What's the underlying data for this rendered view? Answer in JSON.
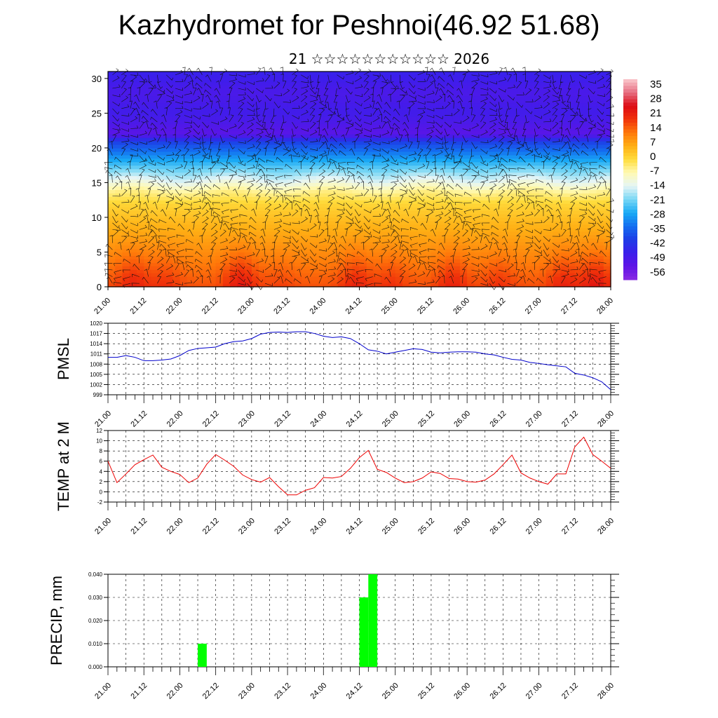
{
  "title": "Kazhydromet for Peshnoi(46.92 51.68)",
  "subtitle": "21 ☆☆☆☆☆☆☆☆☆☆☆ 2026",
  "chart_data": [
    {
      "type": "heatmap",
      "title": "",
      "xlabel": "",
      "ylabel": "",
      "x_tick_labels": [
        "21.00",
        "21.12",
        "22.00",
        "22.12",
        "23.00",
        "23.12",
        "24.00",
        "24.12",
        "25.00",
        "25.12",
        "26.00",
        "26.12",
        "27.00",
        "27.12",
        "28.00"
      ],
      "y_ticks": [
        0,
        5,
        10,
        15,
        20,
        25,
        30
      ],
      "ylim": [
        0,
        31
      ],
      "colorbar_labels": [
        "35",
        "28",
        "21",
        "14",
        "7",
        "0",
        "-7",
        "-14",
        "-21",
        "-28",
        "-35",
        "-42",
        "-49",
        "-56"
      ],
      "colorbar_range": [
        -63,
        42
      ],
      "temperature_profile": [
        {
          "height": 0,
          "value": 18
        },
        {
          "height": 3,
          "value": 14
        },
        {
          "height": 6,
          "value": 10
        },
        {
          "height": 9,
          "value": 6
        },
        {
          "height": 12,
          "value": 1
        },
        {
          "height": 14,
          "value": -6
        },
        {
          "height": 15,
          "value": -12
        },
        {
          "height": 17,
          "value": -22
        },
        {
          "height": 19,
          "value": -32
        },
        {
          "height": 21,
          "value": -42
        },
        {
          "height": 22,
          "value": -55
        },
        {
          "height": 25,
          "value": -50
        },
        {
          "height": 28,
          "value": -52
        },
        {
          "height": 31,
          "value": -48
        }
      ],
      "warm_cores": [
        {
          "x": 0.7,
          "value": 24
        },
        {
          "x": 1.6,
          "value": 22
        },
        {
          "x": 3.7,
          "value": 26
        },
        {
          "x": 4.8,
          "value": 20
        },
        {
          "x": 6.9,
          "value": 24
        },
        {
          "x": 7.9,
          "value": 22
        },
        {
          "x": 9.6,
          "value": 24
        },
        {
          "x": 10.9,
          "value": 22
        },
        {
          "x": 12.7,
          "value": 24
        },
        {
          "x": 13.6,
          "value": 26
        }
      ],
      "wind_barbs": true
    },
    {
      "type": "line",
      "title": "",
      "xlabel": "",
      "ylabel": "PMSL",
      "x_tick_labels": [
        "21.00",
        "21.12",
        "22.00",
        "22.12",
        "23.00",
        "23.12",
        "24.00",
        "24.12",
        "25.00",
        "25.12",
        "26.00",
        "26.12",
        "27.00",
        "27.12",
        "28.00"
      ],
      "y_ticks": [
        999,
        1002,
        1005,
        1008,
        1011,
        1014,
        1017,
        1020
      ],
      "ylim": [
        999,
        1020
      ],
      "series": [
        {
          "color": "#0000cc",
          "x": [
            0,
            0.25,
            0.5,
            0.75,
            1,
            1.25,
            1.5,
            1.75,
            2,
            2.25,
            2.5,
            2.75,
            3,
            3.25,
            3.5,
            3.75,
            4,
            4.25,
            4.5,
            4.75,
            5,
            5.25,
            5.5,
            5.75,
            6,
            6.25,
            6.5,
            6.75,
            7,
            7.25,
            7.5,
            7.75,
            8,
            8.25,
            8.5,
            8.75,
            9,
            9.25,
            9.5,
            9.75,
            10,
            10.25,
            10.5,
            10.75,
            11,
            11.25,
            11.5,
            11.75,
            12,
            12.25,
            12.5,
            12.75,
            13,
            13.25,
            13.5,
            13.75,
            14
          ],
          "values": [
            1010,
            1010,
            1010.5,
            1010,
            1009,
            1009,
            1009.2,
            1009.5,
            1010.5,
            1012,
            1012.6,
            1012.8,
            1013,
            1014,
            1014.6,
            1014.8,
            1015.5,
            1016.8,
            1017.3,
            1017.4,
            1017.3,
            1017.5,
            1017.5,
            1017,
            1016.2,
            1015.8,
            1016,
            1015.5,
            1014,
            1012.2,
            1011.8,
            1011,
            1011.5,
            1012,
            1012.5,
            1012.3,
            1011.5,
            1011.3,
            1011.5,
            1011.6,
            1011.6,
            1011.5,
            1011,
            1010.7,
            1010,
            1009.4,
            1009.2,
            1008.5,
            1008.2,
            1007.8,
            1007.5,
            1007.2,
            1005.3,
            1004.8,
            1004,
            1002.8,
            1000.5
          ]
        }
      ]
    },
    {
      "type": "line",
      "title": "",
      "xlabel": "",
      "ylabel": "TEMP at 2 M",
      "x_tick_labels": [
        "21.00",
        "21.12",
        "22.00",
        "22.12",
        "23.00",
        "23.12",
        "24.00",
        "24.12",
        "25.00",
        "25.12",
        "26.00",
        "26.12",
        "27.00",
        "27.12",
        "28.00"
      ],
      "y_ticks": [
        -2,
        0,
        2,
        4,
        6,
        8,
        10,
        12
      ],
      "ylim": [
        -2,
        12
      ],
      "series": [
        {
          "color": "#ee0000",
          "x": [
            0,
            0.25,
            0.5,
            0.75,
            1,
            1.25,
            1.5,
            1.75,
            2,
            2.25,
            2.5,
            2.75,
            3,
            3.25,
            3.5,
            3.75,
            4,
            4.25,
            4.5,
            4.75,
            5,
            5.25,
            5.5,
            5.75,
            6,
            6.25,
            6.5,
            6.75,
            7,
            7.25,
            7.5,
            7.75,
            8,
            8.25,
            8.5,
            8.75,
            9,
            9.25,
            9.5,
            9.75,
            10,
            10.25,
            10.5,
            10.75,
            11,
            11.25,
            11.5,
            11.75,
            12,
            12.25,
            12.5,
            12.75,
            13,
            13.25,
            13.5,
            13.75,
            14
          ],
          "values": [
            6,
            1.8,
            3.5,
            5.3,
            6.3,
            7.2,
            4.8,
            4,
            3.4,
            1.8,
            2.7,
            5.4,
            7.3,
            6.2,
            5,
            3.3,
            2.4,
            1.9,
            2.8,
            1,
            -0.6,
            -0.6,
            0.3,
            0.8,
            2.8,
            2.7,
            3,
            4.6,
            6.7,
            8.1,
            4.4,
            3.8,
            2.7,
            1.8,
            2,
            2.7,
            3.9,
            3.6,
            2.6,
            2.5,
            2,
            1.9,
            2.3,
            3.5,
            5.3,
            7.2,
            3.7,
            2.7,
            2,
            1.5,
            3.5,
            3.5,
            8.8,
            10.7,
            7.3,
            6,
            4.6
          ]
        }
      ]
    },
    {
      "type": "bar",
      "title": "",
      "xlabel": "",
      "ylabel": "PRECIP, mm",
      "x_tick_labels": [
        "21.00",
        "21.12",
        "22.00",
        "22.12",
        "23.00",
        "23.12",
        "24.00",
        "24.12",
        "25.00",
        "25.12",
        "26.00",
        "26.12",
        "27.00",
        "27.12",
        "28.00"
      ],
      "y_ticks": [
        "0.000",
        "0.010",
        "0.020",
        "0.030",
        "0.040"
      ],
      "ylim": [
        0,
        0.04
      ],
      "color": "#00ff00",
      "bars": [
        {
          "x_start": 2.5,
          "x_end": 2.75,
          "value": 0.01
        },
        {
          "x_start": 7,
          "x_end": 7.25,
          "value": 0.03
        },
        {
          "x_start": 7.25,
          "x_end": 7.5,
          "value": 0.04
        }
      ]
    }
  ]
}
